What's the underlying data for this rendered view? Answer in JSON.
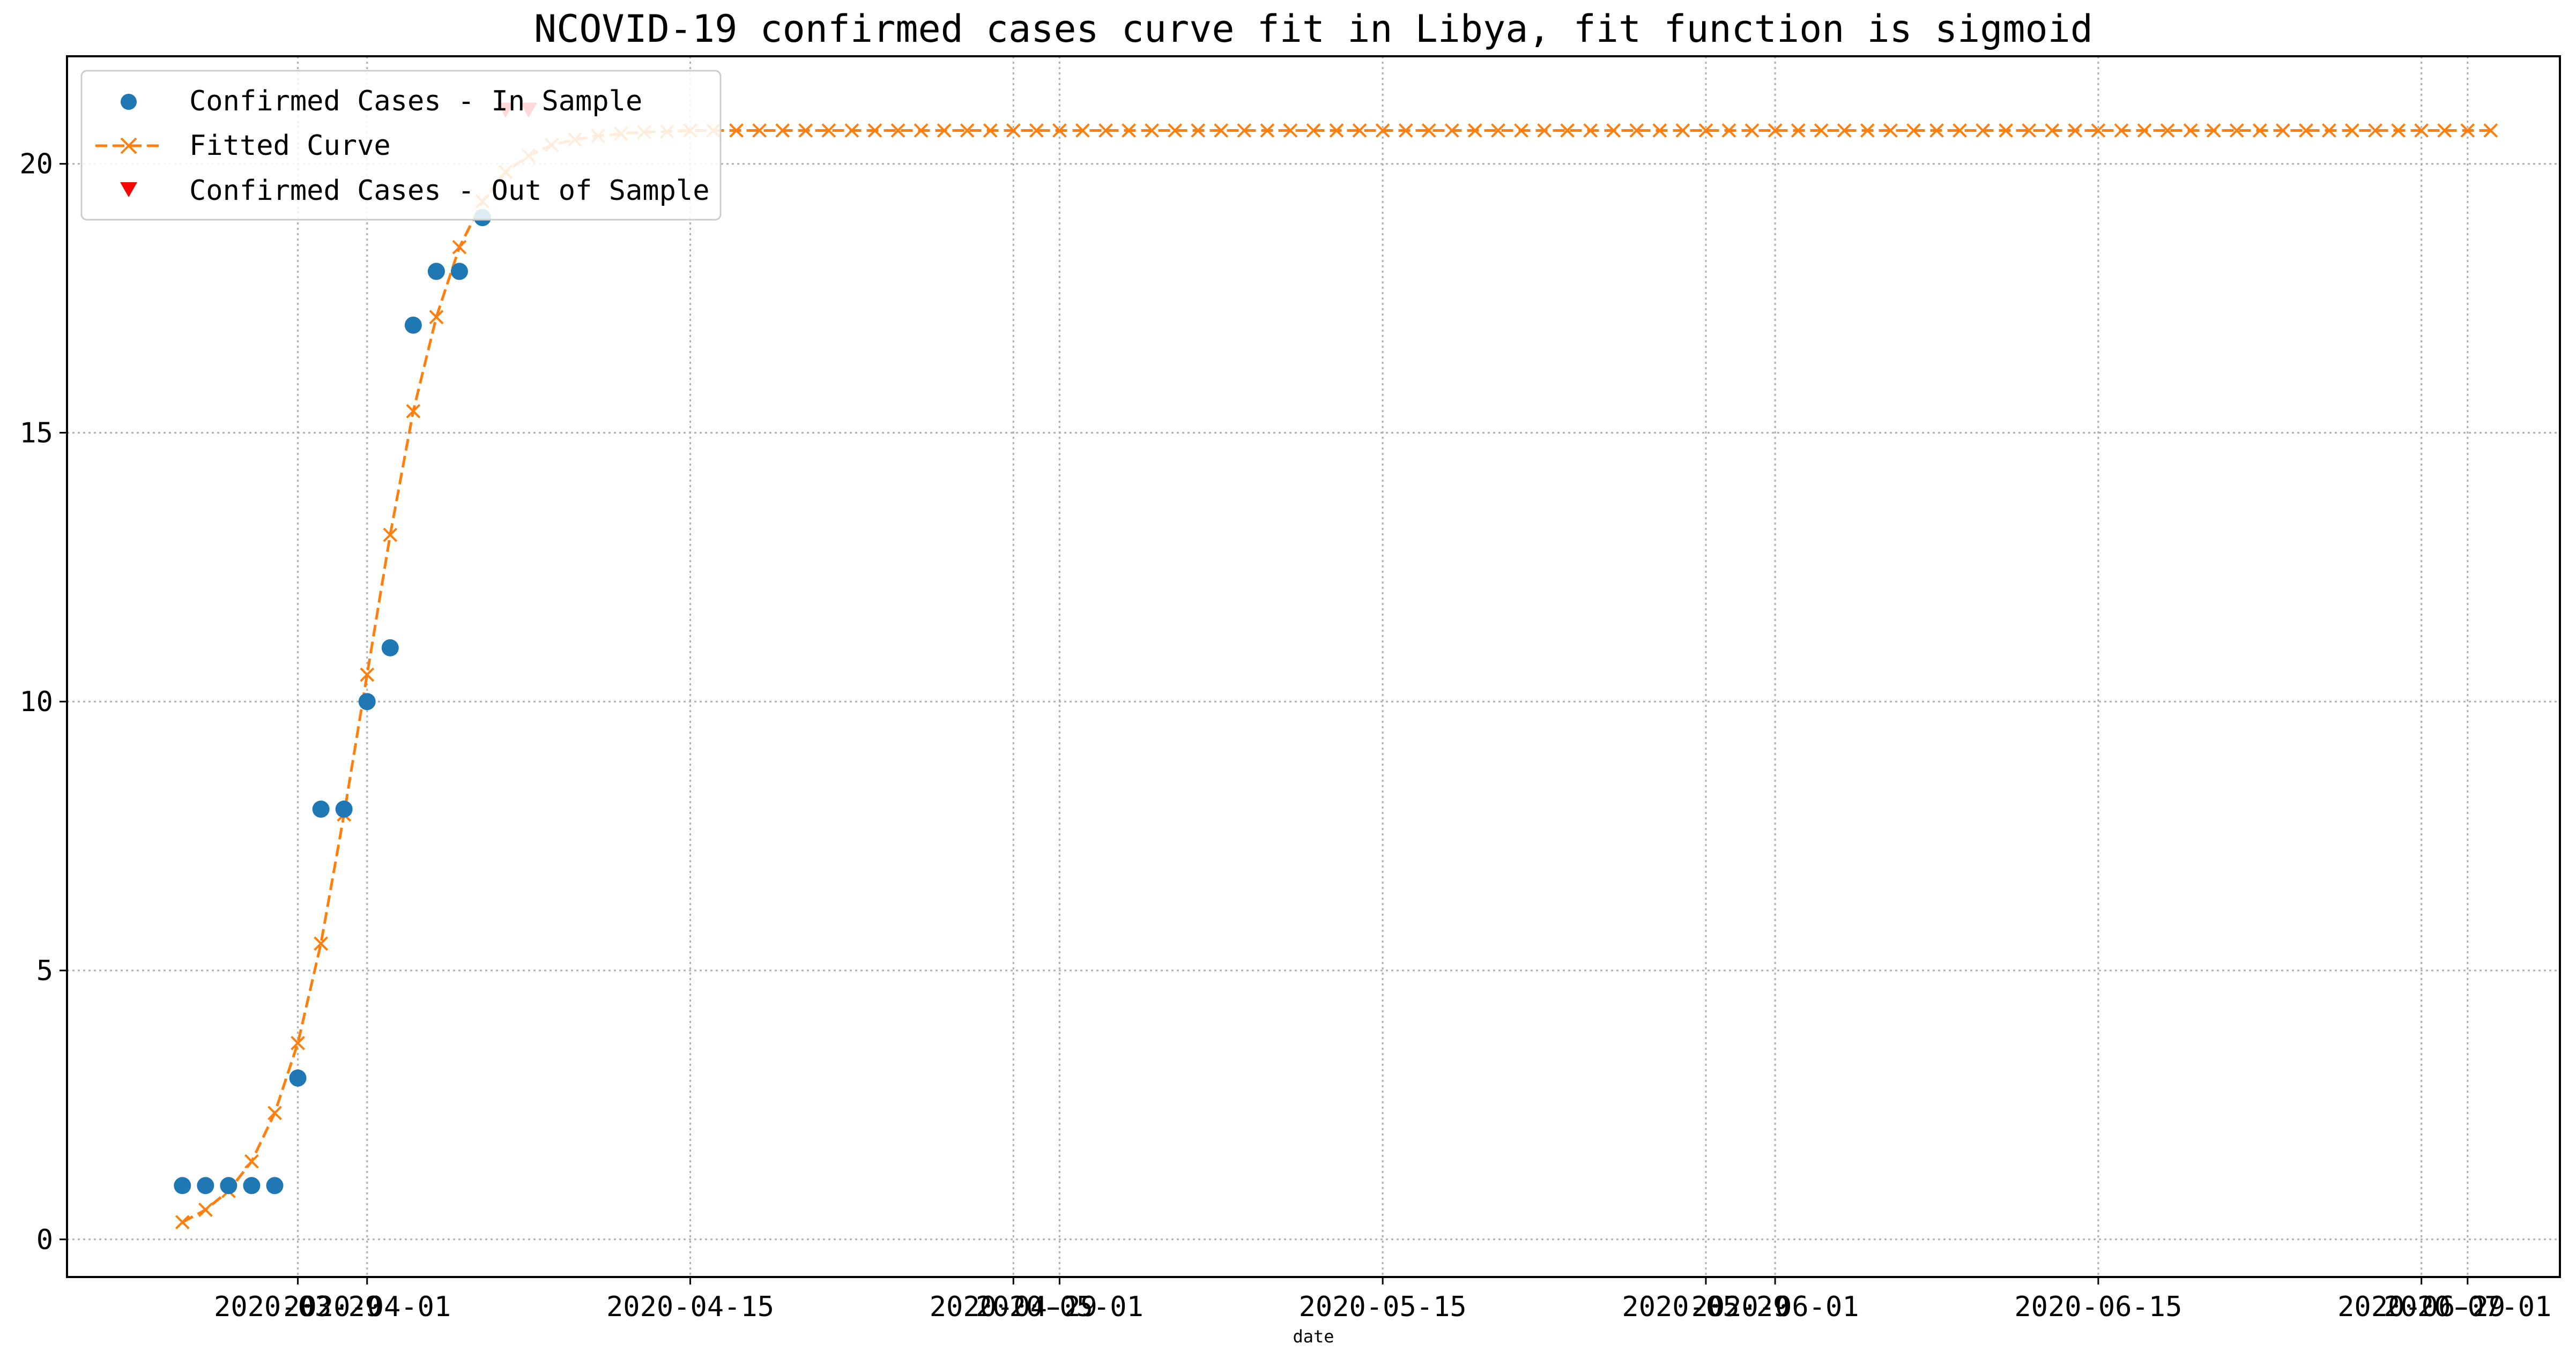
{
  "colors": {
    "in_sample": "#1f77b4",
    "fitted": "#ff7f0e",
    "out_of_sample": "#ff0000",
    "grid": "#b0b0b0"
  },
  "chart_data": {
    "type": "line",
    "title": "NCOVID-19 confirmed cases curve fit in Libya, fit function is sigmoid",
    "xlabel": "date",
    "ylabel": "",
    "x_type": "date",
    "xlim": [
      "2020-03-19",
      "2020-07-05"
    ],
    "ylim": [
      -0.7,
      22.0
    ],
    "grid": true,
    "legend_position": "top-left",
    "x_ticks": [
      "2020-03-29",
      "2020-04-01",
      "2020-04-15",
      "2020-04-29",
      "2020-05-01",
      "2020-05-15",
      "2020-05-29",
      "2020-06-01",
      "2020-06-15",
      "2020-06-29",
      "2020-07-01"
    ],
    "y_ticks": [
      0,
      5,
      10,
      15,
      20
    ],
    "series": [
      {
        "name": "Confirmed Cases - In Sample",
        "style": "markers",
        "marker": "circle",
        "x": [
          "2020-03-24",
          "2020-03-25",
          "2020-03-26",
          "2020-03-27",
          "2020-03-28",
          "2020-03-29",
          "2020-03-30",
          "2020-03-31",
          "2020-04-01",
          "2020-04-02",
          "2020-04-03",
          "2020-04-04",
          "2020-04-05",
          "2020-04-06"
        ],
        "y": [
          1,
          1,
          1,
          1,
          1,
          3,
          8,
          8,
          10,
          11,
          17,
          18,
          18,
          19
        ]
      },
      {
        "name": "Fitted Curve",
        "style": "dashed-line",
        "marker": "x",
        "start_date": "2020-03-24",
        "end_date": "2020-07-02",
        "head_values": [
          0.32,
          0.55,
          0.9,
          1.45,
          2.35,
          3.65,
          5.5,
          7.9,
          10.5,
          13.1,
          15.4,
          17.15,
          18.45,
          19.3,
          19.85,
          20.15,
          20.35,
          20.45,
          20.52,
          20.56,
          20.59,
          20.6
        ],
        "plateau_value": 20.62
      },
      {
        "name": "Confirmed Cases - Out of Sample",
        "style": "markers",
        "marker": "triangle-down",
        "x": [
          "2020-04-07",
          "2020-04-08"
        ],
        "y": [
          21,
          21
        ]
      }
    ]
  }
}
